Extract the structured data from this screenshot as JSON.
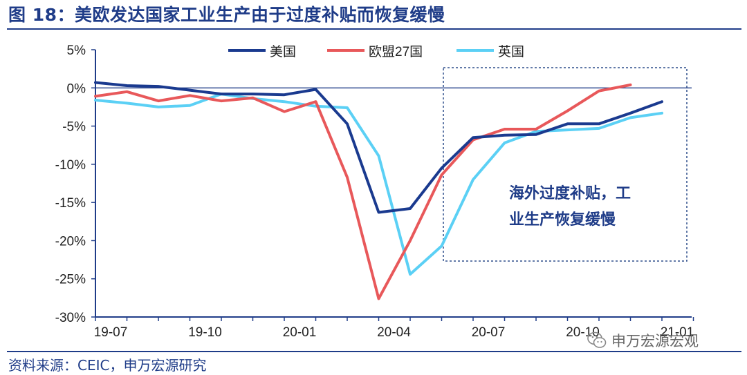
{
  "header": {
    "title": "图 18：美欧发达国家工业生产由于过度补贴而恢复缓慢"
  },
  "footer": {
    "source": "资料来源：CEIC，申万宏源研究"
  },
  "watermark": {
    "text": "申万宏源宏观",
    "icon": "wechat-logo-icon"
  },
  "colors": {
    "title": "#1f3c88",
    "us": "#1a3a8f",
    "eu": "#e8585a",
    "uk": "#5bd0f5",
    "box": "#2f4e8c",
    "axis": "#1f3c88"
  },
  "chart_data": {
    "type": "line",
    "ylim": [
      -30,
      5
    ],
    "y_ticks": [
      5,
      0,
      -5,
      -10,
      -15,
      -20,
      -25,
      -30
    ],
    "y_tick_labels": [
      "5%",
      "0%",
      "-5%",
      "-10%",
      "-15%",
      "-20%",
      "-25%",
      "-30%"
    ],
    "x": [
      "2019-07",
      "2019-08",
      "2019-09",
      "2019-10",
      "2019-11",
      "2019-12",
      "2020-01",
      "2020-02",
      "2020-03",
      "2020-04",
      "2020-05",
      "2020-06",
      "2020-07",
      "2020-08",
      "2020-09",
      "2020-10",
      "2020-11",
      "2020-12",
      "2021-01",
      "2021-02"
    ],
    "x_tick_labels": [
      {
        "label": "19-07",
        "at": "2019-07"
      },
      {
        "label": "19-10",
        "at": "2019-10"
      },
      {
        "label": "20-01",
        "at": "2020-01"
      },
      {
        "label": "20-04",
        "at": "2020-04"
      },
      {
        "label": "20-07",
        "at": "2020-07"
      },
      {
        "label": "20-10",
        "at": "2020-10"
      },
      {
        "label": "21-01",
        "at": "2021-01"
      }
    ],
    "series": [
      {
        "name": "美国",
        "color": "#1a3a8f",
        "values": [
          0.7,
          0.3,
          0.2,
          -0.3,
          -0.8,
          -0.8,
          -0.9,
          -0.2,
          -4.7,
          -16.3,
          -15.8,
          -10.5,
          -6.5,
          -6.2,
          -6.1,
          -4.7,
          -4.7,
          -3.3,
          -1.8,
          null
        ]
      },
      {
        "name": "欧盟27国",
        "color": "#e8585a",
        "values": [
          -1.1,
          -0.5,
          -1.7,
          -1.0,
          -1.7,
          -1.3,
          -3.1,
          -1.8,
          -11.7,
          -27.6,
          -20.0,
          -11.4,
          -6.8,
          -5.4,
          -5.4,
          -3.0,
          -0.4,
          0.4,
          null,
          null
        ]
      },
      {
        "name": "英国",
        "color": "#5bd0f5",
        "values": [
          -1.6,
          -2.0,
          -2.5,
          -2.3,
          -0.8,
          -1.4,
          -1.8,
          -2.4,
          -2.6,
          -8.9,
          -24.4,
          -20.7,
          -12.0,
          -7.2,
          -5.7,
          -5.5,
          -5.3,
          -3.9,
          -3.3,
          null
        ]
      }
    ],
    "annotation": {
      "text_line1": "海外过度补贴，工",
      "text_line2": "业生产恢复缓慢"
    },
    "legend_position": "top",
    "grid": false
  }
}
